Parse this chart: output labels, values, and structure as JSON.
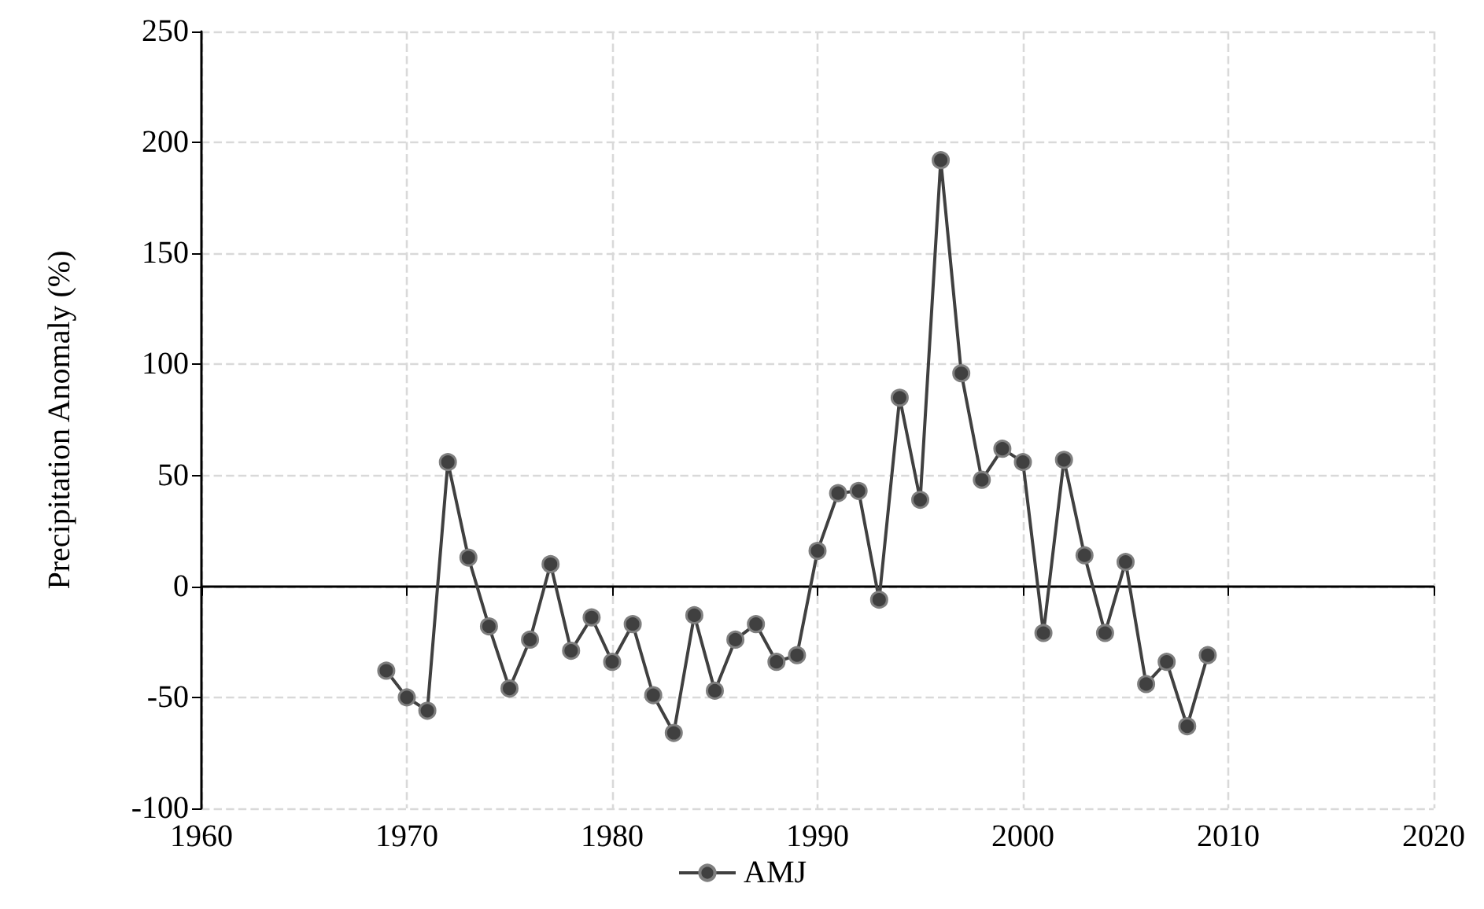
{
  "chart_data": {
    "type": "line",
    "ylabel": "Precipitation Anomaly (%)",
    "x": [
      1969,
      1970,
      1971,
      1972,
      1973,
      1974,
      1975,
      1976,
      1977,
      1978,
      1979,
      1980,
      1981,
      1982,
      1983,
      1984,
      1985,
      1986,
      1987,
      1988,
      1989,
      1990,
      1991,
      1992,
      1993,
      1994,
      1995,
      1996,
      1997,
      1998,
      1999,
      2000,
      2001,
      2002,
      2003,
      2004,
      2005,
      2006,
      2007,
      2008,
      2009
    ],
    "series": [
      {
        "name": "AMJ",
        "color": "#404040",
        "values": [
          -38,
          -50,
          -56,
          56,
          13,
          -18,
          -46,
          -24,
          10,
          -29,
          -14,
          -34,
          -17,
          -49,
          -66,
          -13,
          -47,
          -24,
          -17,
          -34,
          -31,
          16,
          42,
          43,
          -6,
          85,
          39,
          192,
          96,
          48,
          62,
          56,
          -21,
          57,
          14,
          -21,
          11,
          -44,
          -34,
          -63,
          -31
        ]
      }
    ],
    "xlim": [
      1960,
      2020
    ],
    "xticks": [
      1960,
      1970,
      1980,
      1990,
      2000,
      2010,
      2020
    ],
    "ylim": [
      -100,
      250
    ],
    "yticks": [
      -100,
      -50,
      0,
      50,
      100,
      150,
      200,
      250
    ],
    "grid": true,
    "legend": "bottom",
    "marker": "circle",
    "line_style": "solid"
  }
}
